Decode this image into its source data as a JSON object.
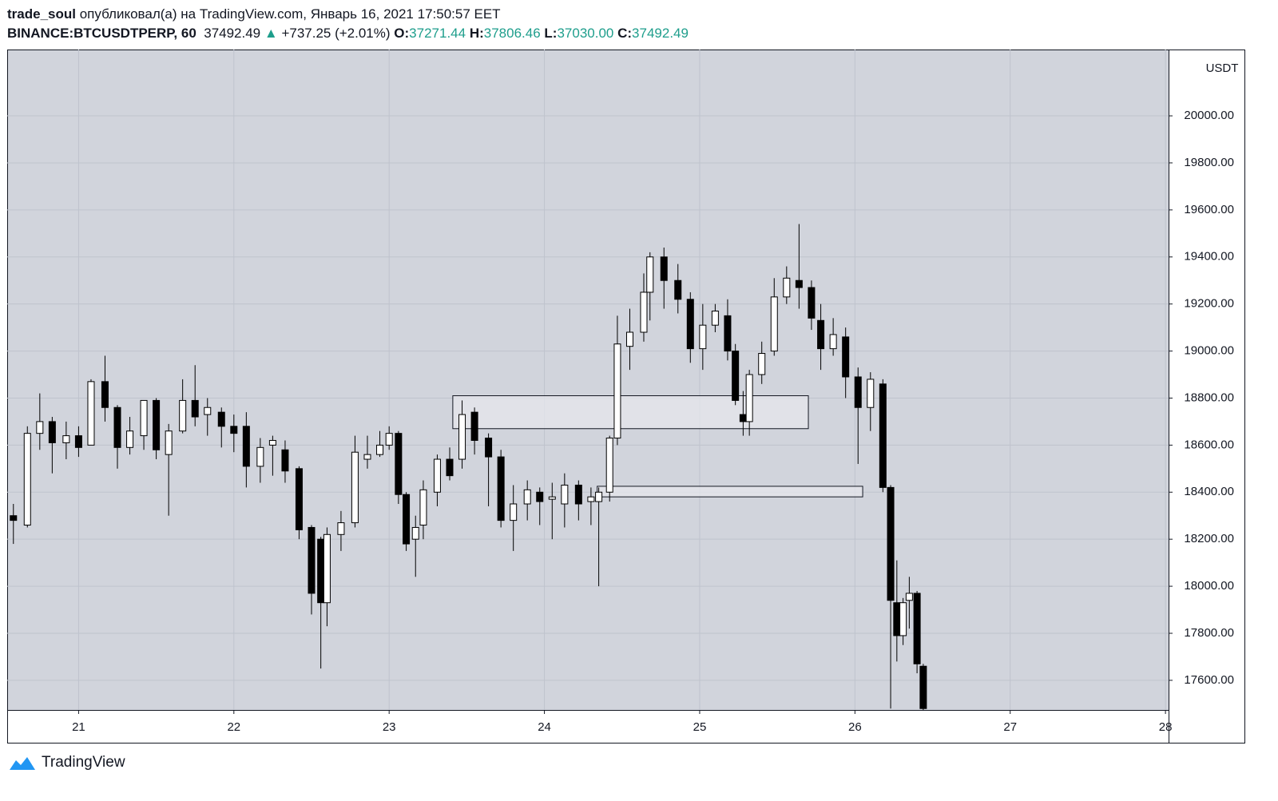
{
  "header": {
    "author": "trade_soul",
    "published": "опубликовал(а) на TradingView.com, Январь 16, 2021 17:50:57 EET",
    "symbol": "BINANCE:BTCUSDTPERP, 60",
    "last": "37492.49",
    "arrow": "▲",
    "change": "+737.25 (+2.01%)",
    "o_label": "O:",
    "o": "37271.44",
    "h_label": "H:",
    "h": "37806.46",
    "l_label": "L:",
    "l": "37030.00",
    "c_label": "C:",
    "c": "37492.49"
  },
  "chart_data": {
    "type": "candlestick",
    "currency": "USDT",
    "grid": true,
    "up_color": "#ffffff",
    "down_color": "#000000",
    "zone_color": "#e6e7ec",
    "xlim": [
      20.54,
      28.02
    ],
    "xticks": [
      21,
      22,
      23,
      24,
      25,
      26,
      27,
      28
    ],
    "ylim": [
      17474,
      20282
    ],
    "yticks": [
      {
        "value": 17600,
        "label": "17600.00"
      },
      {
        "value": 17800,
        "label": "17800.00"
      },
      {
        "value": 18000,
        "label": "18000.00"
      },
      {
        "value": 18200,
        "label": "18200.00"
      },
      {
        "value": 18400,
        "label": "18400.00"
      },
      {
        "value": 18600,
        "label": "18600.00"
      },
      {
        "value": 18800,
        "label": "18800.00"
      },
      {
        "value": 19000,
        "label": "19000.00"
      },
      {
        "value": 19200,
        "label": "19200.00"
      },
      {
        "value": 19400,
        "label": "19400.00"
      },
      {
        "value": 19600,
        "label": "19600.00"
      },
      {
        "value": 19800,
        "label": "19800.00"
      },
      {
        "value": 20000,
        "label": "20000.00"
      }
    ],
    "zones": [
      {
        "x": [
          23.41,
          25.7
        ],
        "y": [
          18670,
          18810
        ]
      },
      {
        "x": [
          24.34,
          26.05
        ],
        "y": [
          18380,
          18425
        ]
      }
    ],
    "x": [
      20.58,
      20.67,
      20.75,
      20.83,
      20.92,
      21.0,
      21.08,
      21.17,
      21.25,
      21.33,
      21.42,
      21.5,
      21.58,
      21.67,
      21.75,
      21.83,
      21.92,
      22.0,
      22.08,
      22.17,
      22.25,
      22.33,
      22.42,
      22.5,
      22.56,
      22.6,
      22.69,
      22.78,
      22.86,
      22.94,
      23.0,
      23.06,
      23.11,
      23.17,
      23.22,
      23.31,
      23.39,
      23.47,
      23.55,
      23.64,
      23.72,
      23.8,
      23.89,
      23.97,
      24.05,
      24.13,
      24.22,
      24.3,
      24.35,
      24.42,
      24.47,
      24.55,
      24.64,
      24.68,
      24.77,
      24.86,
      24.94,
      25.02,
      25.1,
      25.18,
      25.23,
      25.28,
      25.32,
      25.4,
      25.48,
      25.56,
      25.64,
      25.72,
      25.78,
      25.86,
      25.94,
      26.02,
      26.1,
      26.18,
      26.23,
      26.27,
      26.31,
      26.35,
      26.4,
      26.44
    ],
    "open": [
      18300,
      18260,
      18650,
      18700,
      18610,
      18640,
      18600,
      18870,
      18760,
      18590,
      18640,
      18790,
      18560,
      18660,
      18790,
      18730,
      18740,
      18680,
      18680,
      18510,
      18600,
      18580,
      18500,
      18250,
      18200,
      17930,
      18220,
      18270,
      18540,
      18560,
      18600,
      18650,
      18390,
      18200,
      18260,
      18400,
      18540,
      18540,
      18740,
      18630,
      18550,
      18280,
      18350,
      18400,
      18370,
      18350,
      18430,
      18360,
      18360,
      18400,
      18630,
      19020,
      19080,
      19250,
      19400,
      19300,
      19220,
      19010,
      19110,
      19150,
      19000,
      18730,
      18700,
      18900,
      19000,
      19230,
      19300,
      19270,
      19130,
      19010,
      19060,
      18890,
      18760,
      18860,
      18420,
      17930,
      17790,
      17940,
      17970,
      17660
    ],
    "high": [
      18350,
      18680,
      18820,
      18720,
      18700,
      18680,
      18880,
      18980,
      18770,
      18720,
      18790,
      18800,
      18690,
      18880,
      18940,
      18800,
      18760,
      18730,
      18740,
      18630,
      18640,
      18620,
      18510,
      18260,
      18210,
      18250,
      18320,
      18640,
      18640,
      18660,
      18680,
      18660,
      18400,
      18300,
      18450,
      18560,
      18590,
      18790,
      18760,
      18650,
      18580,
      18430,
      18450,
      18420,
      18440,
      18480,
      18450,
      18420,
      18420,
      18640,
      19150,
      19180,
      19330,
      19420,
      19440,
      19370,
      19250,
      19200,
      19200,
      19220,
      19030,
      18830,
      18920,
      19040,
      19310,
      19360,
      19540,
      19300,
      19200,
      19140,
      19100,
      18930,
      18910,
      18880,
      18430,
      18110,
      17950,
      18040,
      17980,
      17670
    ],
    "low": [
      18180,
      18250,
      18580,
      18480,
      18540,
      18550,
      18620,
      18700,
      18500,
      18560,
      18580,
      18540,
      18300,
      18650,
      18680,
      18640,
      18590,
      18570,
      18420,
      18440,
      18470,
      18440,
      18200,
      17880,
      17650,
      17830,
      18150,
      18250,
      18500,
      18550,
      18580,
      18350,
      18150,
      18040,
      18200,
      18340,
      18450,
      18500,
      18560,
      18340,
      18250,
      18150,
      18280,
      18260,
      18200,
      18250,
      18280,
      18260,
      18000,
      18360,
      18600,
      18920,
      19040,
      19130,
      19180,
      19160,
      18950,
      18920,
      19080,
      18960,
      18770,
      18640,
      18640,
      18860,
      18980,
      19200,
      19180,
      19090,
      18920,
      18980,
      18800,
      18520,
      18660,
      18400,
      17480,
      17680,
      17750,
      17820,
      17630,
      17474
    ],
    "close": [
      18280,
      18650,
      18700,
      18610,
      18640,
      18590,
      18870,
      18760,
      18590,
      18660,
      18790,
      18580,
      18660,
      18790,
      18720,
      18760,
      18680,
      18650,
      18510,
      18590,
      18620,
      18490,
      18240,
      17970,
      17930,
      18220,
      18270,
      18570,
      18560,
      18600,
      18650,
      18390,
      18180,
      18250,
      18410,
      18540,
      18470,
      18730,
      18620,
      18550,
      18280,
      18350,
      18410,
      18360,
      18380,
      18430,
      18350,
      18380,
      18400,
      18630,
      19030,
      19080,
      19250,
      19400,
      19300,
      19220,
      19010,
      19110,
      19170,
      19000,
      18790,
      18700,
      18900,
      18990,
      19230,
      19310,
      19270,
      19140,
      19010,
      19070,
      18890,
      18760,
      18880,
      18420,
      17940,
      17790,
      17930,
      17970,
      17670,
      17480
    ]
  }
}
